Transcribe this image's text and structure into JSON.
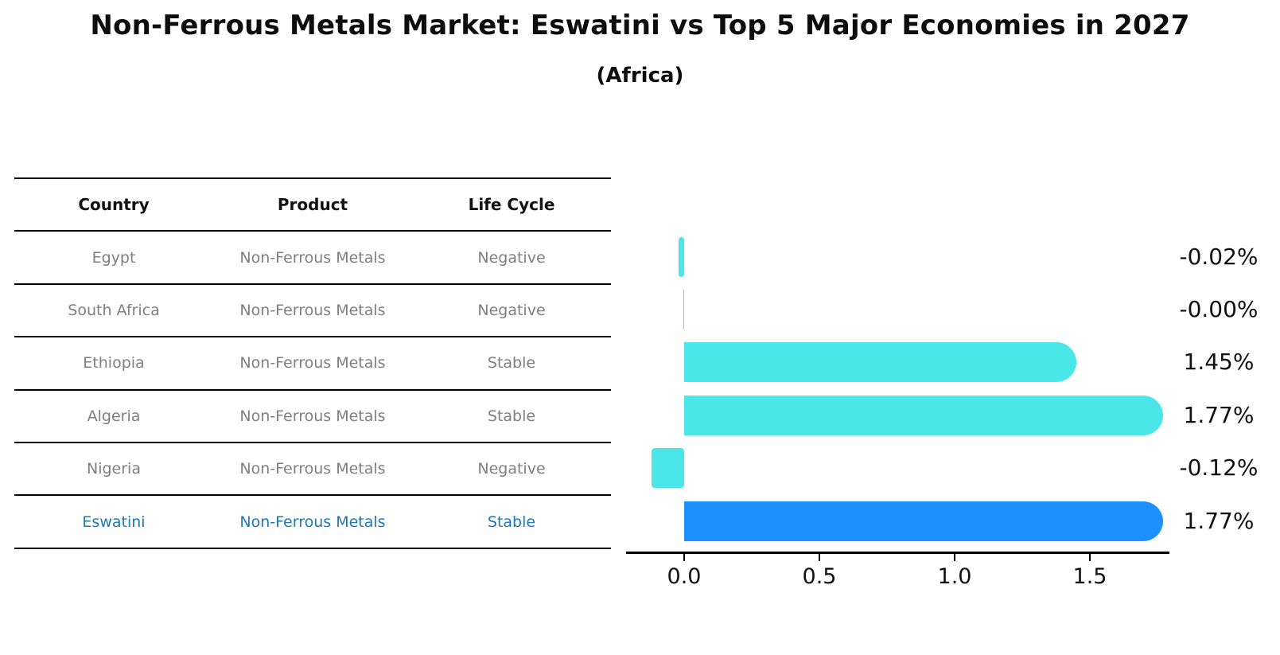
{
  "header": {
    "title": "Non-Ferrous Metals Market: Eswatini vs Top 5 Major Economies in 2027",
    "subtitle": "(Africa)"
  },
  "table": {
    "columns": [
      "Country",
      "Product",
      "Life Cycle"
    ],
    "rows": [
      {
        "country": "Egypt",
        "product": "Non-Ferrous Metals",
        "life_cycle": "Negative",
        "highlight": false
      },
      {
        "country": "South Africa",
        "product": "Non-Ferrous Metals",
        "life_cycle": "Negative",
        "highlight": false
      },
      {
        "country": "Ethiopia",
        "product": "Non-Ferrous Metals",
        "life_cycle": "Stable",
        "highlight": false
      },
      {
        "country": "Algeria",
        "product": "Non-Ferrous Metals",
        "life_cycle": "Stable",
        "highlight": false
      },
      {
        "country": "Nigeria",
        "product": "Non-Ferrous Metals",
        "life_cycle": "Negative",
        "highlight": false
      },
      {
        "country": "Eswatini",
        "product": "Non-Ferrous Metals",
        "life_cycle": "Stable",
        "highlight": true
      }
    ]
  },
  "chart_data": {
    "type": "bar",
    "orientation": "horizontal",
    "title": "Non-Ferrous Metals Market: Eswatini vs Top 5 Major Economies in 2027 (Africa)",
    "categories": [
      "Egypt",
      "South Africa",
      "Ethiopia",
      "Algeria",
      "Nigeria",
      "Eswatini"
    ],
    "values": [
      -0.02,
      -0.001,
      1.45,
      1.77,
      -0.12,
      1.77
    ],
    "value_labels": [
      "-0.02%",
      "-0.00%",
      "1.45%",
      "1.77%",
      "-0.12%",
      "1.77%"
    ],
    "x_ticks": [
      0.0,
      0.5,
      1.0,
      1.5
    ],
    "x_tick_labels": [
      "0.0",
      "0.5",
      "1.0",
      "1.5"
    ],
    "xlim": [
      -0.215,
      1.795
    ],
    "grid": false,
    "legend": "none",
    "highlight_index": 5,
    "colors": {
      "bar_default": "#4BE6E8",
      "bar_highlight": "#1E90FF",
      "highlight_text": "#1f77b4",
      "row_text": "#7f7f7f",
      "axis": "#000000"
    }
  }
}
